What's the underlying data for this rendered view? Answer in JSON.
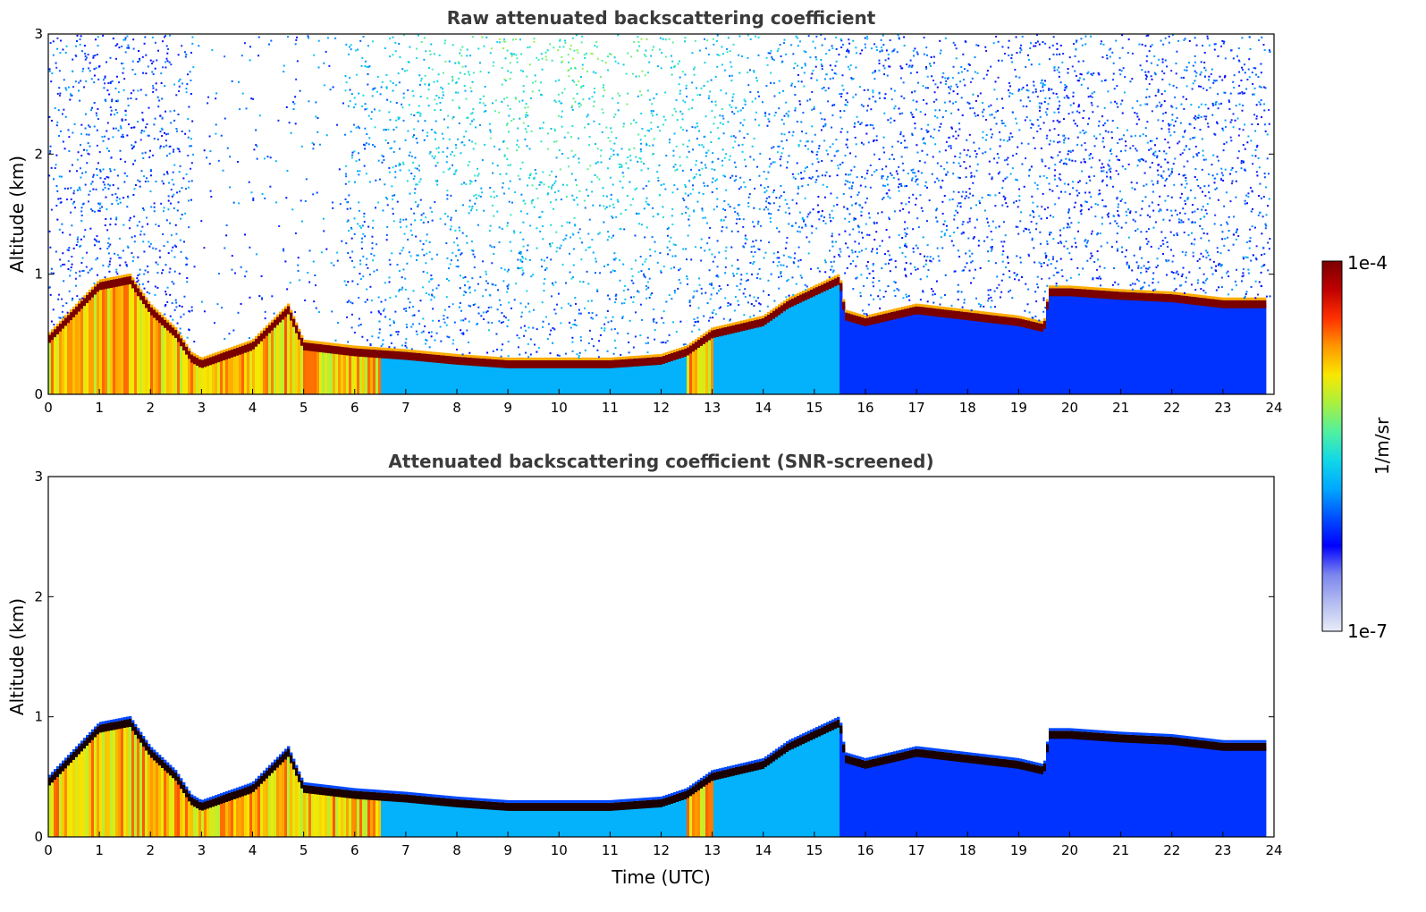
{
  "chart_data": [
    {
      "type": "heatmap",
      "title": "Raw attenuated backscattering coefficient",
      "xlabel": "",
      "ylabel": "Altitude (km)",
      "xlim": [
        0,
        24
      ],
      "ylim": [
        0,
        3
      ],
      "x_ticks": [
        "0",
        "1",
        "2",
        "3",
        "4",
        "5",
        "6",
        "7",
        "8",
        "9",
        "10",
        "11",
        "12",
        "13",
        "14",
        "15",
        "16",
        "17",
        "18",
        "19",
        "20",
        "21",
        "22",
        "23",
        "24"
      ],
      "y_ticks": [
        "0",
        "1",
        "2",
        "3"
      ],
      "screening": "none (noise visible above boundary layer)",
      "layer_top_km": {
        "time_utc": [
          0,
          1,
          1.6,
          2,
          2.5,
          2.8,
          3,
          4,
          4.7,
          5,
          6,
          7,
          8,
          9,
          10,
          11,
          12,
          12.5,
          13,
          13.5,
          14,
          14.5,
          15,
          15.5,
          15.6,
          16,
          17,
          18,
          19,
          19.5,
          19.6,
          20,
          21,
          22,
          23,
          23.8
        ],
        "altitude_km": [
          0.45,
          0.9,
          0.95,
          0.7,
          0.5,
          0.3,
          0.25,
          0.4,
          0.7,
          0.4,
          0.35,
          0.32,
          0.28,
          0.25,
          0.25,
          0.25,
          0.28,
          0.35,
          0.5,
          0.55,
          0.6,
          0.75,
          0.85,
          0.95,
          0.65,
          0.6,
          0.7,
          0.65,
          0.6,
          0.55,
          0.85,
          0.85,
          0.82,
          0.8,
          0.75,
          0.75
        ]
      }
    },
    {
      "type": "heatmap",
      "title": "Attenuated backscattering coefficient (SNR-screened)",
      "xlabel": "Time (UTC)",
      "ylabel": "Altitude (km)",
      "xlim": [
        0,
        24
      ],
      "ylim": [
        0,
        3
      ],
      "x_ticks": [
        "0",
        "1",
        "2",
        "3",
        "4",
        "5",
        "6",
        "7",
        "8",
        "9",
        "10",
        "11",
        "12",
        "13",
        "14",
        "15",
        "16",
        "17",
        "18",
        "19",
        "20",
        "21",
        "22",
        "23",
        "24"
      ],
      "y_ticks": [
        "0",
        "1",
        "2",
        "3"
      ],
      "screening": "SNR-screened (noise removed)",
      "layer_top_km": {
        "time_utc": [
          0,
          1,
          1.6,
          2,
          2.5,
          2.8,
          3,
          4,
          4.7,
          5,
          6,
          7,
          8,
          9,
          10,
          11,
          12,
          12.5,
          13,
          13.5,
          14,
          14.5,
          15,
          15.5,
          15.6,
          16,
          17,
          18,
          19,
          19.5,
          19.6,
          20,
          21,
          22,
          23,
          23.8
        ],
        "altitude_km": [
          0.45,
          0.9,
          0.95,
          0.7,
          0.5,
          0.3,
          0.25,
          0.4,
          0.7,
          0.4,
          0.35,
          0.32,
          0.28,
          0.25,
          0.25,
          0.25,
          0.28,
          0.35,
          0.5,
          0.55,
          0.6,
          0.75,
          0.85,
          0.95,
          0.65,
          0.6,
          0.7,
          0.65,
          0.6,
          0.55,
          0.85,
          0.85,
          0.82,
          0.8,
          0.75,
          0.75
        ]
      }
    }
  ],
  "colorbar": {
    "max_label": "1e-4",
    "min_label": "1e-7",
    "unit_label": "1/m/sr",
    "scale": "log",
    "colors": [
      "#e8ecf8",
      "#b4bcf0",
      "#7a84ee",
      "#0000ff",
      "#0050ff",
      "#00a8ff",
      "#10d8e8",
      "#50f0a0",
      "#a8f040",
      "#f8e800",
      "#ff9800",
      "#ff3000",
      "#c00000",
      "#7a0000"
    ]
  }
}
